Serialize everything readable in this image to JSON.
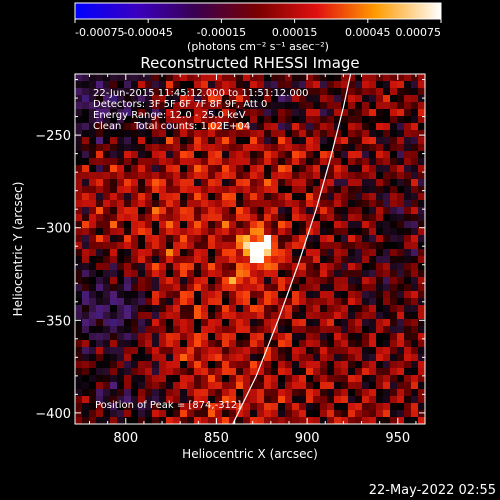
{
  "chart_data": {
    "type": "heatmap",
    "title": "Reconstructed RHESSI Image",
    "xlabel": "Heliocentric X (arcsec)",
    "ylabel": "Heliocentric Y (arcsec)",
    "xlim": [
      772,
      965
    ],
    "ylim": [
      -406,
      -217
    ],
    "x_ticks": [
      800,
      850,
      900,
      950
    ],
    "y_ticks": [
      -250,
      -300,
      -350,
      -400
    ],
    "colorbar": {
      "ticks": [
        "-0.00075",
        "-0.00045",
        "-0.00015",
        "0.00015",
        "0.00045",
        "0.00075"
      ],
      "range": [
        -0.00075,
        0.00075
      ],
      "unit_label": "(photons cm⁻² s⁻¹ asec⁻²)"
    },
    "info_lines": [
      "22-Jun-2015 11:45:12.000 to 11:51:12.000",
      "Detectors: 3F 5F 6F 7F 8F 9F, Att 0",
      "Energy Range: 12.0 - 25.0 keV",
      "Clean    Total counts: 1.02E+04"
    ],
    "peak_label": "Position of Peak = [874,-312]",
    "peak": {
      "x": 874,
      "y": -312
    },
    "limb_curve": [
      {
        "x": 859,
        "y": -406
      },
      {
        "x": 872,
        "y": -380
      },
      {
        "x": 884,
        "y": -350
      },
      {
        "x": 895,
        "y": -320
      },
      {
        "x": 905,
        "y": -290
      },
      {
        "x": 913,
        "y": -262
      },
      {
        "x": 920,
        "y": -235
      },
      {
        "x": 924,
        "y": -217
      }
    ]
  },
  "timestamp": "22-May-2022 02:55"
}
